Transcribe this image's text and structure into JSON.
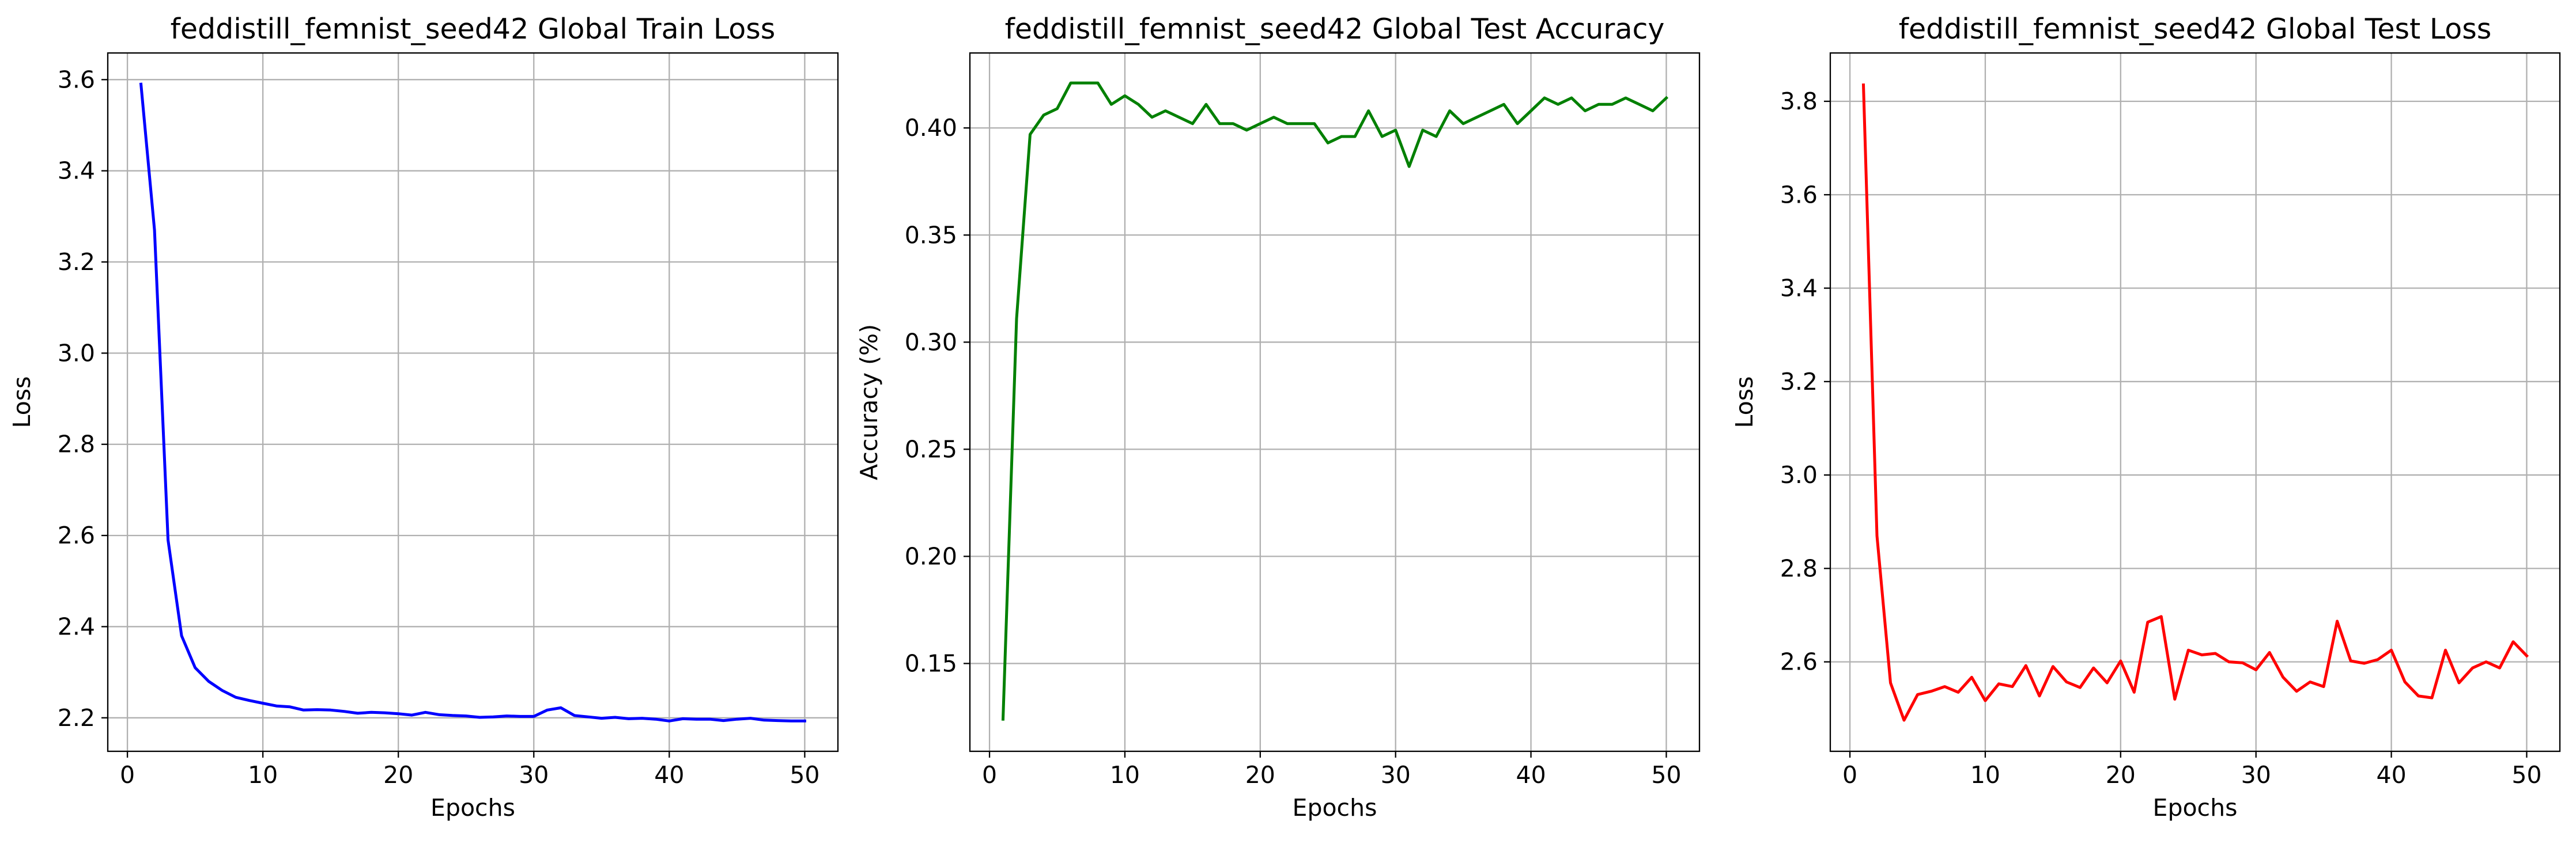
{
  "chart_data": [
    {
      "type": "line",
      "title": "feddistill_femnist_seed42 Global Train Loss",
      "xlabel": "Epochs",
      "ylabel": "Loss",
      "xlim": [
        -1.45,
        52.45
      ],
      "ylim": [
        2.1265,
        3.6585
      ],
      "xticks": [
        0,
        10,
        20,
        30,
        40,
        50
      ],
      "yticks": [
        2.2,
        2.4,
        2.6,
        2.8,
        3.0,
        3.2,
        3.4,
        3.6
      ],
      "xtick_labels": [
        "0",
        "10",
        "20",
        "30",
        "40",
        "50"
      ],
      "ytick_labels": [
        "2.2",
        "2.4",
        "2.6",
        "2.8",
        "3.0",
        "3.2",
        "3.4",
        "3.6"
      ],
      "grid": true,
      "color": "#0000ff",
      "series": [
        {
          "x": [
            1,
            2,
            3,
            4,
            5,
            6,
            7,
            8,
            9,
            10,
            11,
            12,
            13,
            14,
            15,
            16,
            17,
            18,
            19,
            20,
            21,
            22,
            23,
            24,
            25,
            26,
            27,
            28,
            29,
            30,
            31,
            32,
            33,
            34,
            35,
            36,
            37,
            38,
            39,
            40,
            41,
            42,
            43,
            44,
            45,
            46,
            47,
            48,
            49,
            50
          ],
          "values": [
            3.59,
            3.27,
            2.59,
            2.38,
            2.31,
            2.28,
            2.26,
            2.245,
            2.238,
            2.232,
            2.226,
            2.224,
            2.217,
            2.218,
            2.217,
            2.214,
            2.21,
            2.212,
            2.211,
            2.209,
            2.206,
            2.212,
            2.207,
            2.205,
            2.204,
            2.201,
            2.202,
            2.204,
            2.203,
            2.203,
            2.217,
            2.222,
            2.205,
            2.202,
            2.199,
            2.201,
            2.198,
            2.199,
            2.197,
            2.193,
            2.198,
            2.197,
            2.197,
            2.194,
            2.197,
            2.199,
            2.195,
            2.194,
            2.193,
            2.193
          ]
        }
      ]
    },
    {
      "type": "line",
      "title": "feddistill_femnist_seed42 Global Test Accuracy",
      "xlabel": "Epochs",
      "ylabel": "Accuracy (%)",
      "xlim": [
        -1.45,
        52.45
      ],
      "ylim": [
        0.109,
        0.435
      ],
      "xticks": [
        0,
        10,
        20,
        30,
        40,
        50
      ],
      "yticks": [
        0.15,
        0.2,
        0.25,
        0.3,
        0.35,
        0.4
      ],
      "xtick_labels": [
        "0",
        "10",
        "20",
        "30",
        "40",
        "50"
      ],
      "ytick_labels": [
        "0.15",
        "0.20",
        "0.25",
        "0.30",
        "0.35",
        "0.40"
      ],
      "grid": true,
      "color": "#008000",
      "series": [
        {
          "x": [
            1,
            2,
            3,
            4,
            5,
            6,
            7,
            8,
            9,
            10,
            11,
            12,
            13,
            14,
            15,
            16,
            17,
            18,
            19,
            20,
            21,
            22,
            23,
            24,
            25,
            26,
            27,
            28,
            29,
            30,
            31,
            32,
            33,
            34,
            35,
            36,
            37,
            38,
            39,
            40,
            41,
            42,
            43,
            44,
            45,
            46,
            47,
            48,
            49,
            50
          ],
          "values": [
            0.124,
            0.311,
            0.397,
            0.406,
            0.409,
            0.421,
            0.421,
            0.421,
            0.411,
            0.415,
            0.411,
            0.405,
            0.408,
            0.405,
            0.402,
            0.411,
            0.402,
            0.402,
            0.399,
            0.402,
            0.405,
            0.402,
            0.402,
            0.402,
            0.393,
            0.396,
            0.396,
            0.408,
            0.396,
            0.399,
            0.382,
            0.399,
            0.396,
            0.408,
            0.402,
            0.405,
            0.408,
            0.411,
            0.402,
            0.408,
            0.414,
            0.411,
            0.414,
            0.408,
            0.411,
            0.411,
            0.414,
            0.411,
            0.408,
            0.414
          ]
        }
      ]
    },
    {
      "type": "line",
      "title": "feddistill_femnist_seed42 Global Test Loss",
      "xlabel": "Epochs",
      "ylabel": "Loss",
      "xlim": [
        -1.45,
        52.45
      ],
      "ylim": [
        2.4085,
        3.9035
      ],
      "xticks": [
        0,
        10,
        20,
        30,
        40,
        50
      ],
      "yticks": [
        2.6,
        2.8,
        3.0,
        3.2,
        3.4,
        3.6,
        3.8
      ],
      "xtick_labels": [
        "0",
        "10",
        "20",
        "30",
        "40",
        "50"
      ],
      "ytick_labels": [
        "2.6",
        "2.8",
        "3.0",
        "3.2",
        "3.4",
        "3.6",
        "3.8"
      ],
      "grid": true,
      "color": "#ff0000",
      "series": [
        {
          "x": [
            1,
            2,
            3,
            4,
            5,
            6,
            7,
            8,
            9,
            10,
            11,
            12,
            13,
            14,
            15,
            16,
            17,
            18,
            19,
            20,
            21,
            22,
            23,
            24,
            25,
            26,
            27,
            28,
            29,
            30,
            31,
            32,
            33,
            34,
            35,
            36,
            37,
            38,
            39,
            40,
            41,
            42,
            43,
            44,
            45,
            46,
            47,
            48,
            49,
            50
          ],
          "values": [
            3.835,
            2.87,
            2.555,
            2.475,
            2.53,
            2.537,
            2.547,
            2.535,
            2.567,
            2.517,
            2.553,
            2.547,
            2.592,
            2.527,
            2.59,
            2.557,
            2.545,
            2.587,
            2.555,
            2.602,
            2.535,
            2.685,
            2.697,
            2.52,
            2.625,
            2.615,
            2.618,
            2.6,
            2.598,
            2.583,
            2.62,
            2.567,
            2.537,
            2.557,
            2.547,
            2.687,
            2.602,
            2.597,
            2.605,
            2.625,
            2.557,
            2.527,
            2.523,
            2.625,
            2.555,
            2.587,
            2.6,
            2.587,
            2.643,
            2.613
          ]
        }
      ]
    }
  ]
}
